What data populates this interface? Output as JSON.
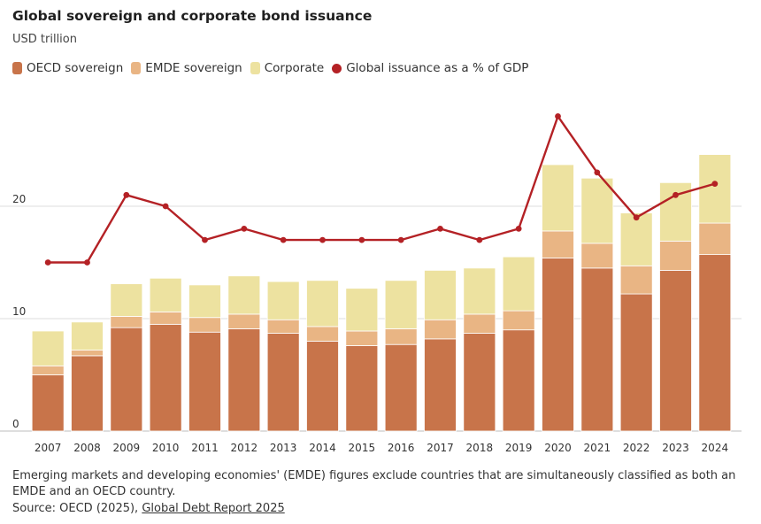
{
  "header": {
    "title": "Global sovereign and corporate bond issuance",
    "subtitle": "USD trillion"
  },
  "legend": [
    {
      "label": "OECD sovereign",
      "color": "#C8744A",
      "shape": "bar"
    },
    {
      "label": "EMDE sovereign",
      "color": "#E9B584",
      "shape": "bar"
    },
    {
      "label": "Corporate",
      "color": "#EDE2A0",
      "shape": "bar"
    },
    {
      "label": "Global issuance as a % of GDP",
      "color": "#B42125",
      "shape": "dot"
    }
  ],
  "footer": {
    "note": "Emerging markets and developing economies' (EMDE) figures exclude countries that are simultaneously classified as both an EMDE and an OECD country.",
    "source_prefix": "Source: OECD (2025), ",
    "source_link": "Global Debt Report 2025"
  },
  "chart_data": {
    "type": "bar",
    "stacked": true,
    "title": "Global sovereign and corporate bond issuance",
    "ylabel": "USD trillion",
    "ylim": [
      0,
      28
    ],
    "yticks": [
      0,
      10,
      20
    ],
    "grid": true,
    "legend_position": "top-left",
    "categories": [
      "2007",
      "2008",
      "2009",
      "2010",
      "2011",
      "2012",
      "2013",
      "2014",
      "2015",
      "2016",
      "2017",
      "2018",
      "2019",
      "2020",
      "2021",
      "2022",
      "2023",
      "2024"
    ],
    "series": [
      {
        "name": "OECD sovereign",
        "color": "#C8744A",
        "values": [
          5.0,
          6.7,
          9.2,
          9.5,
          8.8,
          9.1,
          8.7,
          8.0,
          7.6,
          7.7,
          8.2,
          8.7,
          9.0,
          15.4,
          14.5,
          12.2,
          14.3,
          15.7
        ]
      },
      {
        "name": "EMDE sovereign",
        "color": "#E9B584",
        "values": [
          0.8,
          0.5,
          1.0,
          1.1,
          1.3,
          1.3,
          1.2,
          1.3,
          1.3,
          1.4,
          1.7,
          1.7,
          1.7,
          2.4,
          2.2,
          2.5,
          2.6,
          2.8
        ]
      },
      {
        "name": "Corporate",
        "color": "#EDE2A0",
        "values": [
          3.1,
          2.5,
          2.9,
          3.0,
          2.9,
          3.4,
          3.4,
          4.1,
          3.8,
          4.3,
          4.4,
          4.1,
          4.8,
          5.9,
          5.8,
          4.7,
          5.2,
          6.1
        ]
      }
    ],
    "line": {
      "name": "Global issuance as a % of GDP",
      "color": "#B42125",
      "values": [
        15,
        15,
        21,
        20,
        17,
        18,
        17,
        17,
        17,
        17,
        18,
        17,
        18,
        28,
        23,
        19,
        21,
        22
      ]
    }
  }
}
